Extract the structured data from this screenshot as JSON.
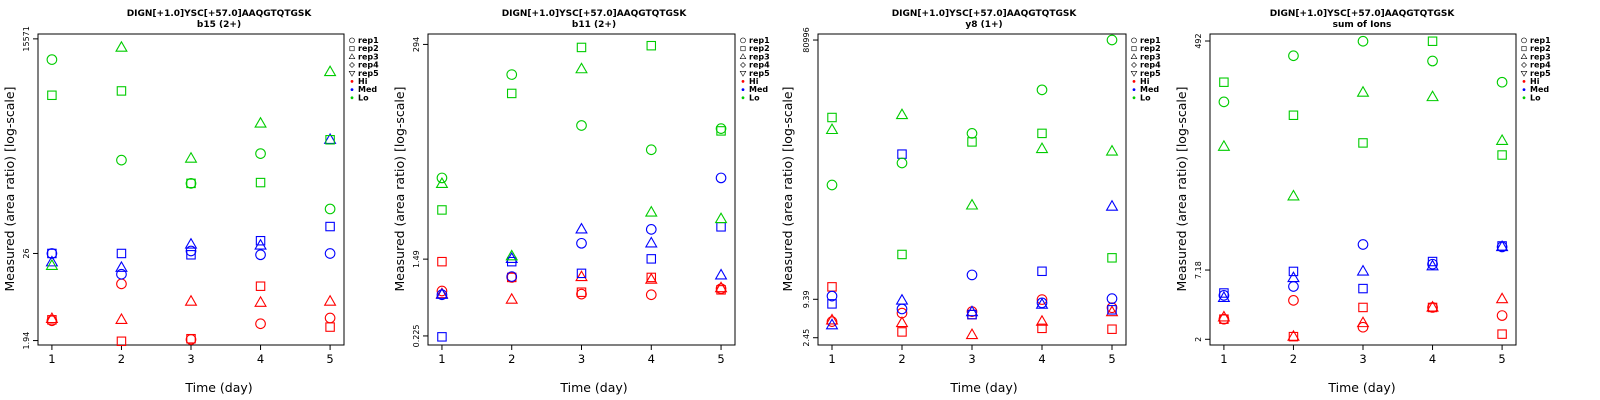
{
  "chart_data": [
    {
      "type": "scatter",
      "title": "DIGN[+1.0]YSC[+57.0]AAQGTQTGSK",
      "subtitle": "b15 (2+)",
      "xlabel": "Time (day)",
      "ylabel": "Measured (area ratio) [log-scale]",
      "log_y": true,
      "xlim": [
        0.8,
        5.2
      ],
      "ylim": [
        1.7,
        18000
      ],
      "x_ticks": [
        "1",
        "2",
        "3",
        "4",
        "5"
      ],
      "y_ticks": [
        "1.94",
        "26",
        "15571"
      ],
      "legend": [
        "rep1",
        "rep2",
        "rep3",
        "rep4",
        "rep5",
        "Hi",
        "Med",
        "Lo"
      ],
      "legend_position": "right",
      "series": [
        {
          "name": "Hi",
          "color": "#ff0000",
          "rep1": [
            3.5,
            10.5,
            2.0,
            3.2,
            3.8
          ],
          "rep2": [
            3.6,
            1.9,
            2.05,
            9.8,
            2.9
          ],
          "rep3": [
            3.7,
            3.6,
            6.2,
            6.0,
            6.2
          ]
        },
        {
          "name": "Med",
          "color": "#0000ff",
          "rep1": [
            26,
            14,
            28,
            25,
            26
          ],
          "rep2": [
            26,
            26,
            25,
            38,
            58
          ],
          "rep3": [
            20,
            17,
            34,
            33,
            770
          ]
        },
        {
          "name": "Lo",
          "color": "#00cc00",
          "rep1": [
            8400,
            420,
            210,
            510,
            98
          ],
          "rep2": [
            2900,
            3300,
            210,
            215,
            770
          ],
          "rep3": [
            18,
            12000.0,
            440,
            1250,
            5800
          ]
        }
      ]
    },
    {
      "type": "scatter",
      "title": "DIGN[+1.0]YSC[+57.0]AAQGTQTGSK",
      "subtitle": "b11 (2+)",
      "xlabel": "Time (day)",
      "ylabel": "Measured (area ratio) [log-scale]",
      "log_y": true,
      "xlim": [
        0.8,
        5.2
      ],
      "ylim": [
        0.18,
        380
      ],
      "x_ticks": [
        "1",
        "2",
        "3",
        "4",
        "5"
      ],
      "y_ticks": [
        "0.225",
        "1.49",
        "294"
      ],
      "legend": [
        "rep1",
        "rep2",
        "rep3",
        "rep4",
        "rep5",
        "Hi",
        "Med",
        "Lo"
      ],
      "legend_position": "right",
      "series": [
        {
          "name": "Hi",
          "color": "#ff0000",
          "rep1": [
            0.68,
            0.95,
            0.63,
            0.62,
            0.72
          ],
          "rep2": [
            1.4,
            0.95,
            0.66,
            0.95,
            0.7
          ],
          "rep3": [
            0.63,
            0.55,
            0.96,
            0.9,
            0.73
          ]
        },
        {
          "name": "Med",
          "color": "#0000ff",
          "rep1": [
            0.62,
            0.97,
            2.2,
            3.1,
            11
          ],
          "rep2": [
            0.22,
            1.4,
            1.05,
            1.5,
            3.3
          ],
          "rep3": [
            0.62,
            1.5,
            3.1,
            2.2,
            1.0
          ]
        },
        {
          "name": "Lo",
          "color": "#00cc00",
          "rep1": [
            11,
            140,
            40,
            22,
            37
          ],
          "rep2": [
            5.0,
            88,
            273,
            285,
            35
          ],
          "rep3": [
            9.5,
            1.6,
            160,
            4.7,
            4.0
          ]
        }
      ]
    },
    {
      "type": "scatter",
      "title": "DIGN[+1.0]YSC[+57.0]AAQGTQTGSK",
      "subtitle": "y8 (1+)",
      "xlabel": "Time (day)",
      "ylabel": "Measured (area ratio) [log-scale]",
      "log_y": true,
      "xlim": [
        0.8,
        5.2
      ],
      "ylim": [
        1.9,
        100000
      ],
      "x_ticks": [
        "1",
        "2",
        "3",
        "4",
        "5"
      ],
      "y_ticks": [
        "2.45",
        "9.39",
        "80996"
      ],
      "legend": [
        "rep1",
        "rep2",
        "rep3",
        "rep4",
        "rep5",
        "Hi",
        "Med",
        "Lo"
      ],
      "legend_position": "right",
      "series": [
        {
          "name": "Hi",
          "color": "#ff0000",
          "rep1": [
            4.3,
            5.8,
            6.1,
            9.3,
            7.0
          ],
          "rep2": [
            14.5,
            3.0,
            5.5,
            3.4,
            3.3
          ],
          "rep3": [
            4.5,
            4.1,
            2.7,
            4.3,
            6.0
          ]
        },
        {
          "name": "Med",
          "color": "#0000ff",
          "rep1": [
            10.5,
            6.7,
            22,
            8.3,
            9.6
          ],
          "rep2": [
            8.0,
            1500,
            5.5,
            25,
            6.5
          ],
          "rep3": [
            3.8,
            9.0,
            6.0,
            7.8,
            240
          ]
        },
        {
          "name": "Lo",
          "color": "#00cc00",
          "rep1": [
            510,
            1100,
            3100,
            14200.0,
            81000
          ],
          "rep2": [
            5400,
            45,
            2300,
            3100,
            40
          ],
          "rep3": [
            3500,
            5900,
            250,
            1800,
            1650
          ]
        }
      ]
    },
    {
      "type": "scatter",
      "title": "DIGN[+1.0]YSC[+57.0]AAQGTQTGSK",
      "subtitle": "sum of Ions",
      "xlabel": "Time (day)",
      "ylabel": "Measured (area ratio) [log-scale]",
      "log_y": true,
      "xlim": [
        0.8,
        5.2
      ],
      "ylim": [
        1.8,
        560
      ],
      "x_ticks": [
        "1",
        "2",
        "3",
        "4",
        "5"
      ],
      "y_ticks": [
        "2",
        "7.18",
        "492"
      ],
      "legend": [
        "rep1",
        "rep2",
        "rep3",
        "rep4",
        "rep5",
        "Hi",
        "Med",
        "Lo"
      ],
      "legend_position": "right",
      "series": [
        {
          "name": "Hi",
          "color": "#ff0000",
          "rep1": [
            2.9,
            4.1,
            2.5,
            3.6,
            3.1
          ],
          "rep2": [
            2.9,
            2.1,
            3.6,
            3.6,
            2.2
          ],
          "rep3": [
            3.0,
            2.1,
            2.7,
            3.6,
            4.2
          ]
        },
        {
          "name": "Med",
          "color": "#0000ff",
          "rep1": [
            4.5,
            5.3,
            11.5,
            8.0,
            11.0
          ],
          "rep2": [
            4.7,
            7.0,
            5.1,
            8.4,
            11.2
          ],
          "rep3": [
            4.3,
            6.2,
            7.0,
            7.7,
            11.0
          ]
        },
        {
          "name": "Lo",
          "color": "#00cc00",
          "rep1": [
            160,
            375,
            490,
            340,
            230
          ],
          "rep2": [
            230,
            125,
            75,
            490,
            60
          ],
          "rep3": [
            70,
            28,
            190,
            175,
            78
          ]
        }
      ]
    }
  ]
}
